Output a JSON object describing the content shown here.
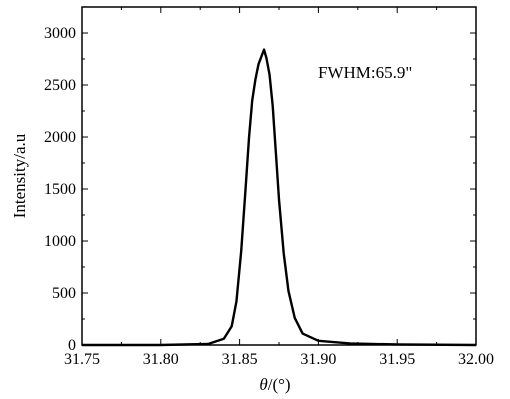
{
  "chart_data": {
    "type": "line",
    "title": "",
    "xlabel_symbol": "θ",
    "xlabel_unit": "/(°)",
    "ylabel": "Intensity/a.u",
    "xlim": [
      31.75,
      32.0
    ],
    "ylim": [
      0,
      3250
    ],
    "x_ticks": [
      31.75,
      31.8,
      31.85,
      31.9,
      31.95,
      32.0
    ],
    "x_tick_labels": [
      "31.75",
      "31.80",
      "31.85",
      "31.90",
      "31.95",
      "32.00"
    ],
    "y_ticks": [
      0,
      500,
      1000,
      1500,
      2000,
      2500,
      3000
    ],
    "y_tick_labels": [
      "0",
      "500",
      "1000",
      "1500",
      "2000",
      "2500",
      "3000"
    ],
    "grid": false,
    "annotation": "FWHM:65.9\"",
    "series": [
      {
        "color": "#000000",
        "x": [
          31.75,
          31.8,
          31.83,
          31.84,
          31.845,
          31.848,
          31.851,
          31.854,
          31.856,
          31.858,
          31.86,
          31.862,
          31.864,
          31.8655,
          31.867,
          31.869,
          31.871,
          31.873,
          31.875,
          31.878,
          31.881,
          31.885,
          31.89,
          31.9,
          31.92,
          31.95,
          32.0
        ],
        "y": [
          0,
          0,
          10,
          60,
          180,
          420,
          900,
          1550,
          2000,
          2350,
          2550,
          2700,
          2780,
          2840,
          2760,
          2600,
          2300,
          1850,
          1400,
          880,
          520,
          260,
          110,
          40,
          15,
          5,
          0
        ]
      }
    ]
  }
}
